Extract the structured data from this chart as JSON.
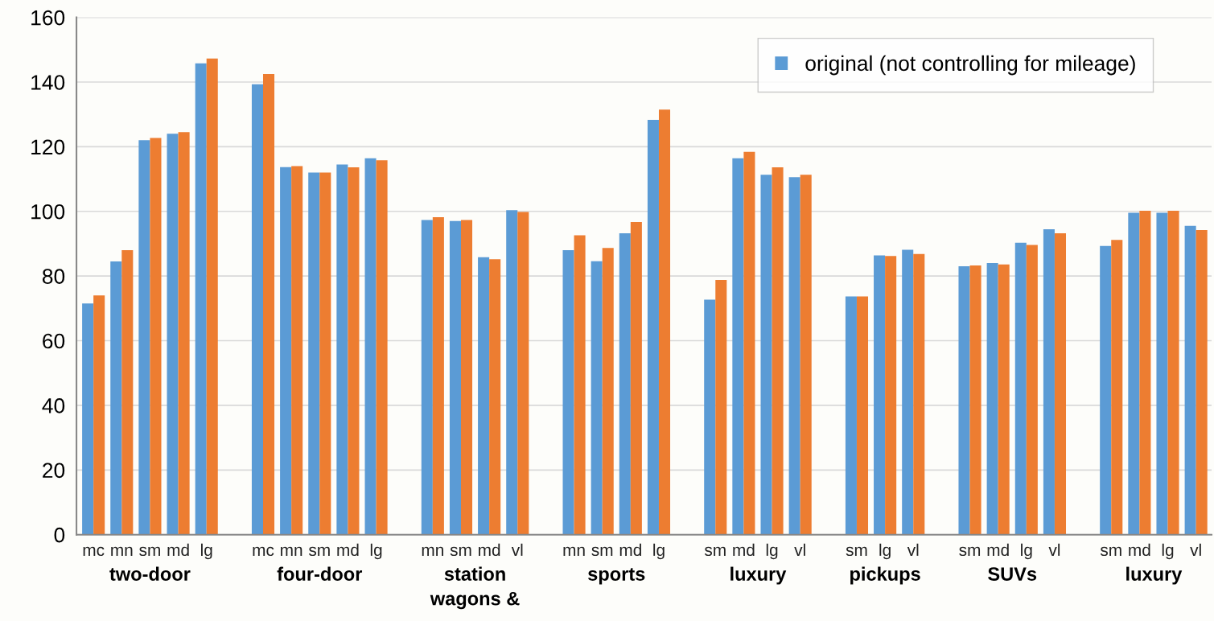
{
  "chart_data": {
    "type": "bar",
    "categories": [
      "mc",
      "mn",
      "sm",
      "md",
      "lg",
      null,
      "mc",
      "mn",
      "sm",
      "md",
      "lg",
      null,
      "mn",
      "sm",
      "md",
      "vl",
      null,
      "mn",
      "sm",
      "md",
      "lg",
      null,
      "sm",
      "md",
      "lg",
      "vl",
      null,
      "sm",
      "lg",
      "vl",
      null,
      "sm",
      "md",
      "lg",
      "vl",
      null,
      "sm",
      "md",
      "lg",
      "vl"
    ],
    "series": [
      {
        "name": "original (not controlling for mileage)",
        "color": "#5b9bd5",
        "values": [
          71.5,
          84.5,
          122,
          124,
          145.8,
          null,
          139.3,
          113.7,
          112,
          114.5,
          116.4,
          null,
          97.3,
          97,
          85.8,
          100.4,
          null,
          88,
          84.6,
          93.2,
          128.3,
          null,
          72.7,
          116.4,
          111.3,
          110.6,
          null,
          73.7,
          86.4,
          88.1,
          null,
          83,
          84,
          90.3,
          94.5,
          null,
          89.3,
          99.6,
          99.6,
          95.5
        ]
      },
      {
        "color": "#ed7d31",
        "values": [
          74,
          88,
          122.7,
          124.5,
          147.3,
          null,
          142.5,
          114,
          112,
          113.6,
          115.8,
          null,
          98.2,
          97.3,
          85.2,
          99.8,
          null,
          92.6,
          88.7,
          96.7,
          131.5,
          null,
          78.8,
          118.4,
          113.6,
          111.3,
          null,
          73.7,
          86.2,
          86.8,
          null,
          83.3,
          83.6,
          89.6,
          93.2,
          null,
          91.2,
          100.2,
          100.2,
          94.2
        ]
      }
    ],
    "annotations": [
      "two-door",
      "four-door",
      "station\nwagons &",
      "sports",
      "luxury",
      "pickups",
      "SUVs",
      "luxury"
    ],
    "ylim": [
      0,
      160
    ],
    "yticks": [
      0,
      20,
      40,
      60,
      80,
      100,
      120,
      140,
      160
    ],
    "grid": "y",
    "legend": "top right"
  }
}
